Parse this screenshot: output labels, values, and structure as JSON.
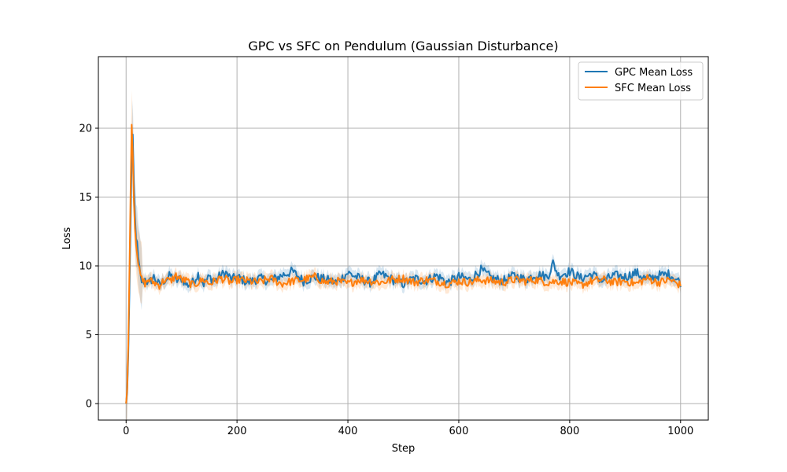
{
  "chart_data": {
    "type": "line",
    "title": "GPC vs SFC on Pendulum (Gaussian Disturbance)",
    "xlabel": "Step",
    "ylabel": "Loss",
    "xlim": [
      -50,
      1050
    ],
    "ylim": [
      -1.2,
      25.2
    ],
    "xticks": [
      0,
      200,
      400,
      600,
      800,
      1000
    ],
    "yticks": [
      0,
      5,
      10,
      15,
      20
    ],
    "xtick_labels": [
      "0",
      "200",
      "400",
      "600",
      "800",
      "1000"
    ],
    "ytick_labels": [
      "0",
      "5",
      "10",
      "15",
      "20"
    ],
    "grid": true,
    "legend_position": "top-right",
    "series": [
      {
        "name": "GPC Mean Loss",
        "color": "#1f77b4",
        "band_color": "#1f77b4",
        "x": [
          0,
          2,
          4,
          6,
          8,
          10,
          12,
          14,
          16,
          18,
          20,
          22,
          24,
          26,
          28,
          30,
          35,
          40,
          50,
          60,
          70,
          80,
          90,
          100,
          110,
          120,
          130,
          140,
          150,
          160,
          170,
          180,
          190,
          200,
          220,
          240,
          260,
          280,
          300,
          320,
          340,
          360,
          380,
          400,
          420,
          440,
          460,
          480,
          500,
          520,
          540,
          560,
          580,
          600,
          620,
          640,
          660,
          680,
          700,
          720,
          740,
          760,
          770,
          780,
          800,
          820,
          840,
          860,
          880,
          900,
          920,
          940,
          960,
          980,
          1000
        ],
        "y": [
          0.0,
          0.8,
          3.5,
          8.0,
          13.0,
          17.5,
          19.2,
          16.0,
          13.5,
          12.2,
          11.5,
          10.5,
          9.8,
          9.2,
          8.9,
          8.8,
          9.1,
          8.7,
          9.2,
          8.6,
          9.0,
          9.3,
          8.9,
          9.1,
          8.6,
          8.8,
          9.4,
          8.7,
          9.2,
          8.9,
          9.3,
          9.5,
          9.0,
          9.2,
          8.8,
          9.1,
          8.9,
          9.3,
          9.6,
          8.9,
          9.2,
          9.0,
          8.8,
          9.5,
          9.1,
          8.8,
          9.4,
          9.0,
          8.7,
          9.1,
          8.9,
          9.3,
          8.8,
          9.2,
          9.0,
          9.7,
          9.1,
          8.9,
          9.3,
          9.0,
          9.4,
          9.2,
          10.2,
          9.3,
          9.6,
          9.1,
          9.4,
          8.9,
          9.3,
          9.2,
          9.5,
          9.0,
          9.3,
          9.4,
          8.8
        ],
        "noise": 0.35
      },
      {
        "name": "SFC Mean Loss",
        "color": "#ff7f0e",
        "band_color": "#ff7f0e",
        "x": [
          0,
          2,
          4,
          6,
          8,
          10,
          12,
          14,
          16,
          18,
          20,
          22,
          24,
          26,
          28,
          30,
          35,
          40,
          50,
          60,
          70,
          80,
          90,
          100,
          110,
          120,
          130,
          140,
          150,
          160,
          170,
          180,
          190,
          200,
          220,
          240,
          260,
          280,
          300,
          320,
          340,
          360,
          380,
          400,
          420,
          440,
          460,
          480,
          500,
          520,
          540,
          560,
          580,
          600,
          620,
          640,
          660,
          680,
          700,
          720,
          740,
          760,
          780,
          800,
          820,
          840,
          860,
          880,
          900,
          920,
          940,
          960,
          980,
          1000
        ],
        "y": [
          0.0,
          1.0,
          4.2,
          9.5,
          15.5,
          20.2,
          18.5,
          14.8,
          12.8,
          11.8,
          11.0,
          10.2,
          9.6,
          9.3,
          9.0,
          8.9,
          8.7,
          9.0,
          8.8,
          8.6,
          9.0,
          8.9,
          9.3,
          9.0,
          8.9,
          8.6,
          8.8,
          9.0,
          8.7,
          8.9,
          9.1,
          9.0,
          8.8,
          9.0,
          8.9,
          8.8,
          9.1,
          8.7,
          8.9,
          9.0,
          9.2,
          8.8,
          8.9,
          8.7,
          9.0,
          8.9,
          8.8,
          9.0,
          9.1,
          8.8,
          9.0,
          8.9,
          8.7,
          8.9,
          8.8,
          9.0,
          8.9,
          8.8,
          9.0,
          8.9,
          9.0,
          8.8,
          8.9,
          8.8,
          8.6,
          8.9,
          9.0,
          8.8,
          8.9,
          8.7,
          9.1,
          8.8,
          9.0,
          8.6
        ],
        "noise": 0.3
      }
    ]
  }
}
